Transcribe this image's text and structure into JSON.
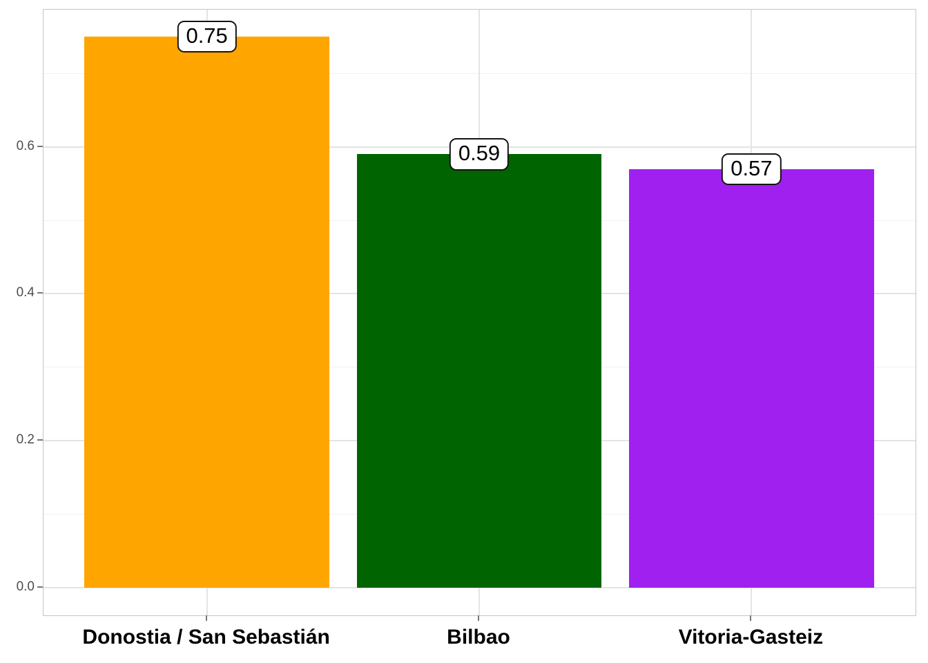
{
  "chart_data": {
    "type": "bar",
    "categories": [
      "Donostia / San Sebastián",
      "Bilbao",
      "Vitoria-Gasteiz"
    ],
    "values": [
      0.75,
      0.59,
      0.57
    ],
    "value_labels": [
      "0.75",
      "0.59",
      "0.57"
    ],
    "bar_colors": [
      "#FFA500",
      "#006400",
      "#A020F0"
    ],
    "title": "",
    "xlabel": "",
    "ylabel": "",
    "ylim": [
      -0.037,
      0.787
    ],
    "y_major_ticks": [
      0.0,
      0.2,
      0.4,
      0.6
    ],
    "y_major_tick_labels": [
      "0.0",
      "0.2",
      "0.4",
      "0.6"
    ],
    "y_minor_ticks": [
      0.1,
      0.3,
      0.5,
      0.7
    ],
    "grid": true,
    "legend_position": "none",
    "bar_relative_width": 0.9,
    "discrete_axis_padding": 0.6
  },
  "style": {
    "background": "#ffffff",
    "panel_border_color": "#c4c4c4",
    "grid_major_color": "#e4e4e4",
    "grid_minor_color": "#f1f1f1",
    "axis_text_color": "#4d4d4d",
    "x_axis_text_color": "#000000",
    "label_box_bg": "#ffffff",
    "label_box_border": "#141414"
  }
}
